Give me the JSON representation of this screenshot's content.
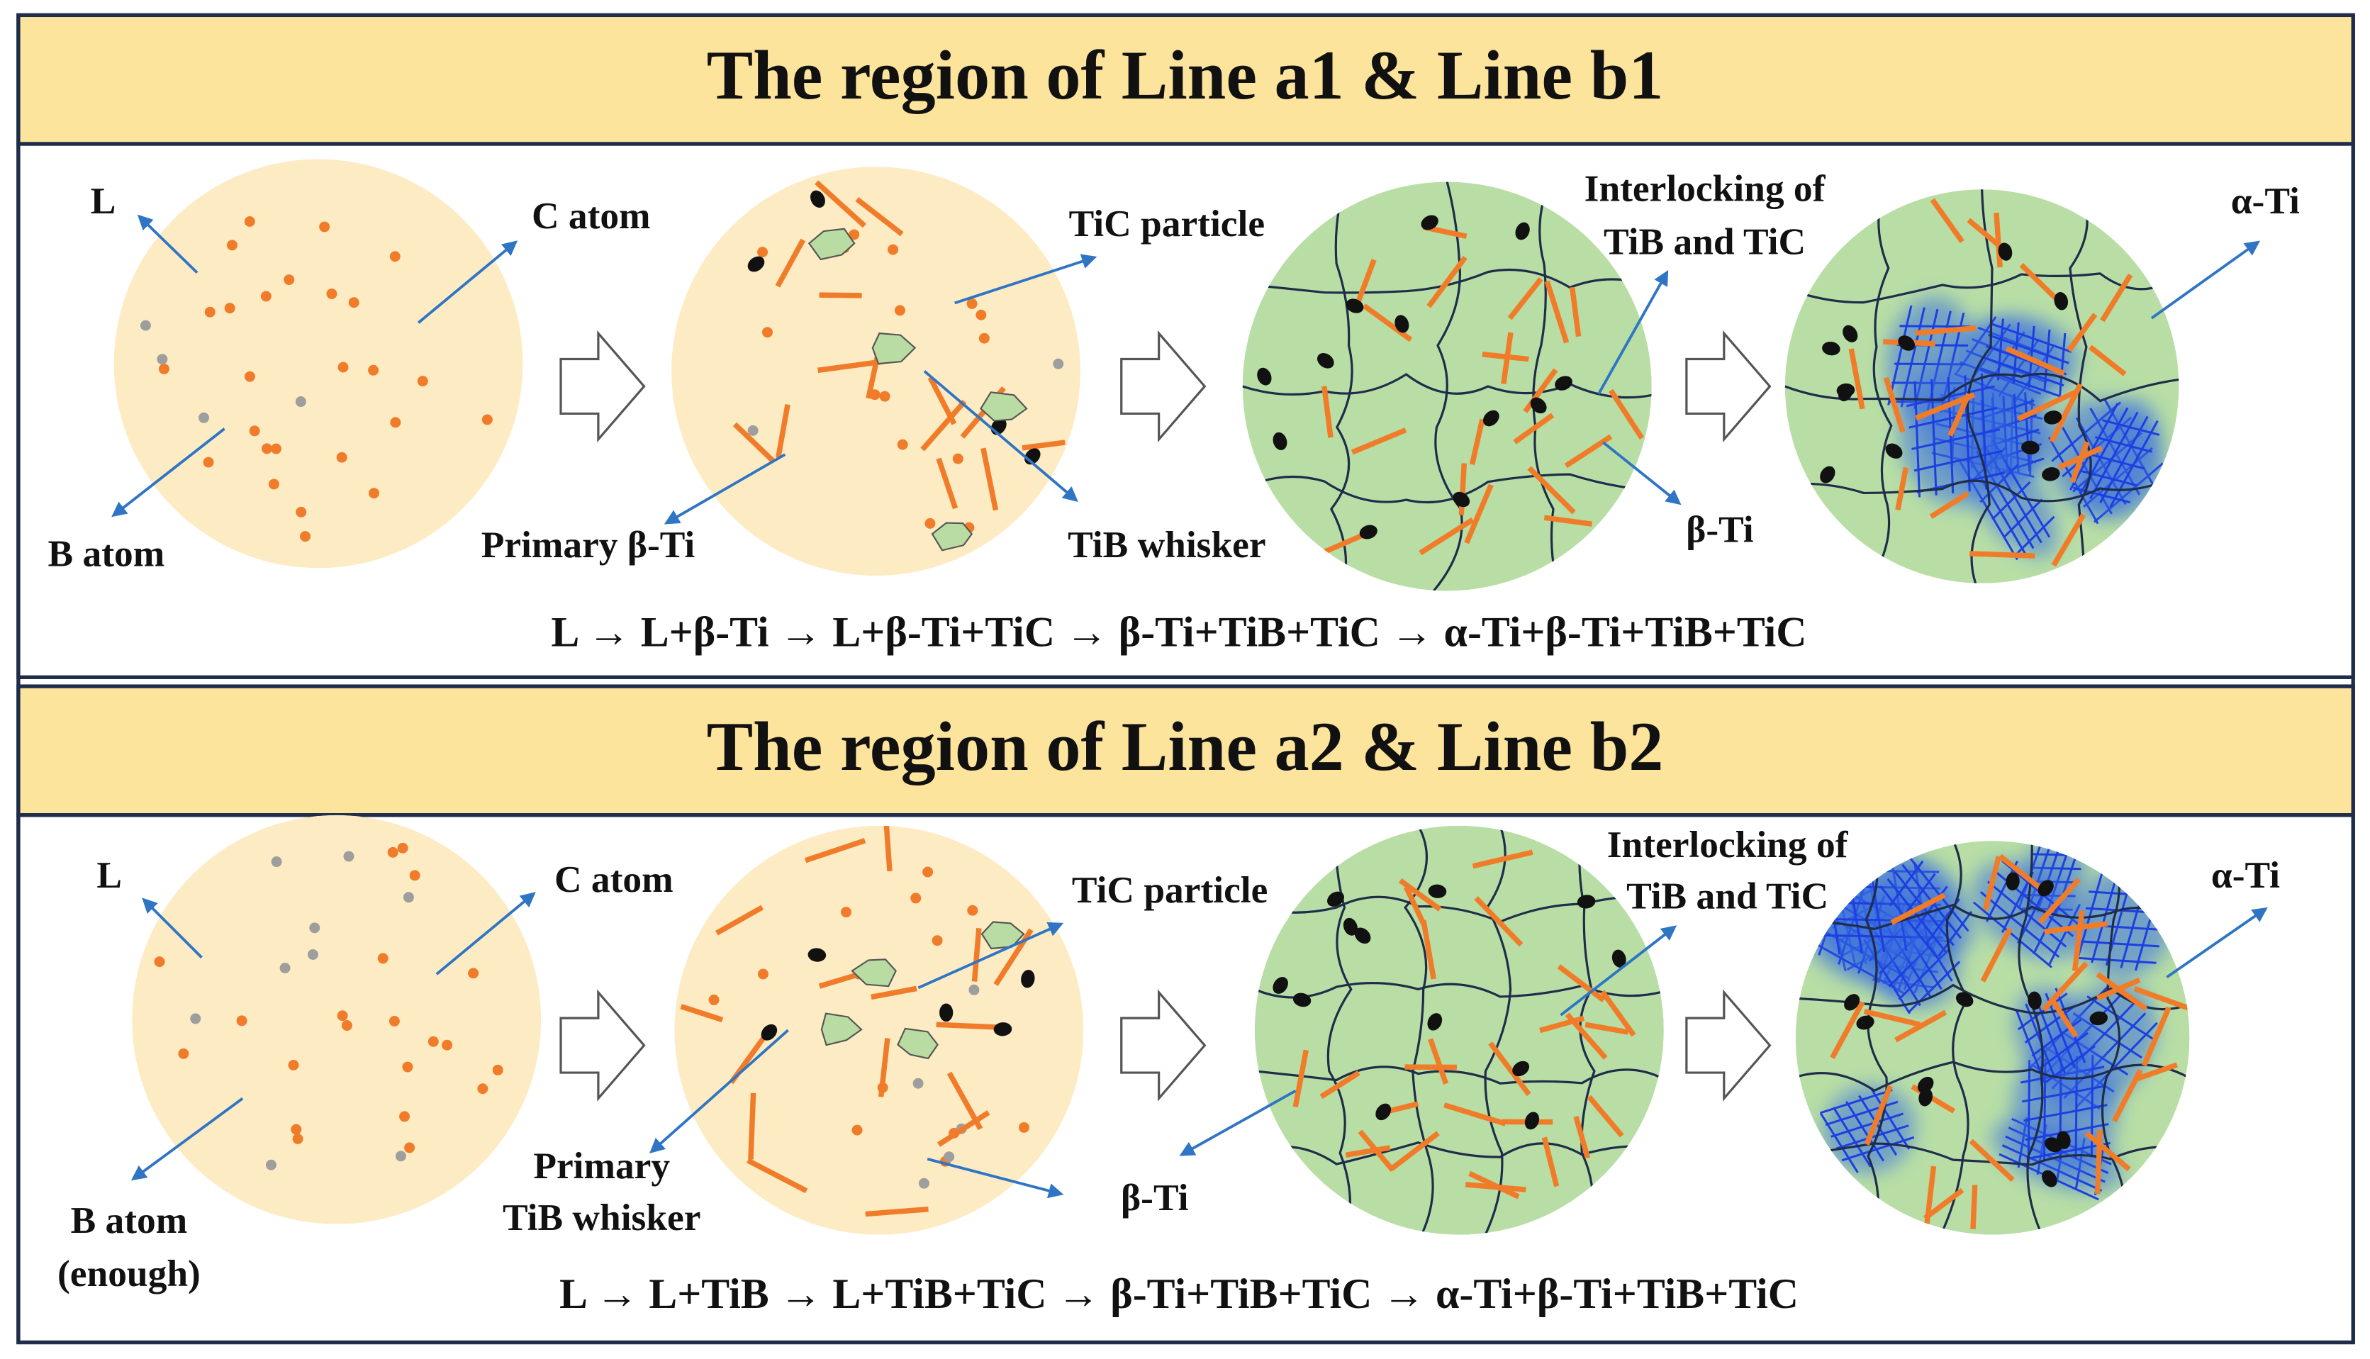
{
  "panels": [
    {
      "title": "The region of Line a1 & Line b1",
      "labels": [
        "L",
        "C atom",
        "B atom",
        "TiC particle",
        "Primary β-Ti",
        "TiB whisker",
        "Interlocking of",
        "TiB and TiC",
        "β-Ti",
        "α-Ti"
      ],
      "equation": "L → L+β-Ti → L+β-Ti+TiC → β-Ti+TiB+TiC → α-Ti+β-Ti+TiB+TiC"
    },
    {
      "title": "The region of Line a2 & Line b2",
      "labels": [
        "L",
        "C atom",
        "B atom",
        "(enough)",
        "TiC particle",
        "Primary",
        "TiB whisker",
        "β-Ti",
        "Interlocking of",
        "TiB and TiC",
        "α-Ti"
      ],
      "equation": "L → L+TiB → L+TiB+TiC → β-Ti+TiB+TiC → α-Ti+β-Ti+TiB+TiC"
    }
  ]
}
